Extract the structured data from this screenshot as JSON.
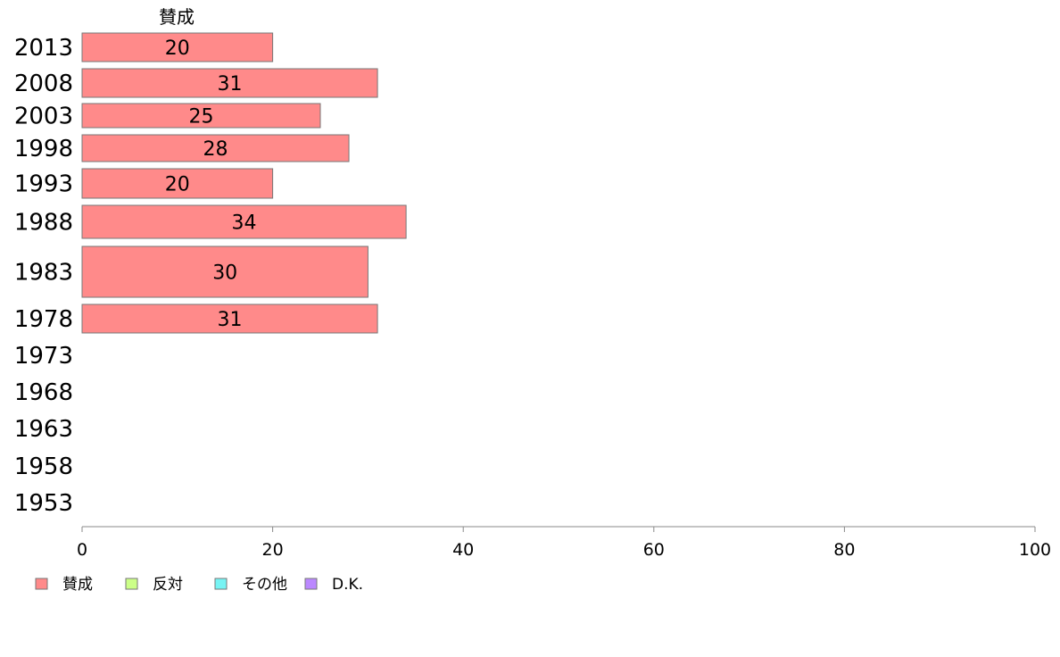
{
  "chart_data": {
    "type": "bar",
    "orientation": "horizontal",
    "stacked": true,
    "column_header": "賛成",
    "categories": [
      "2013",
      "2008",
      "2003",
      "1998",
      "1993",
      "1988",
      "1983",
      "1978",
      "1973",
      "1968",
      "1963",
      "1958",
      "1953"
    ],
    "series": [
      {
        "name": "賛成",
        "color": "#ff8a8a",
        "values": [
          20,
          31,
          25,
          28,
          20,
          34,
          30,
          31,
          null,
          null,
          null,
          null,
          null
        ],
        "labels": [
          "20",
          "31",
          "25",
          "28",
          "20",
          "34",
          "30",
          "31",
          "",
          "",
          "",
          "",
          ""
        ]
      },
      {
        "name": "反対",
        "color": "#ccff88",
        "values": [
          null,
          null,
          null,
          null,
          null,
          null,
          null,
          null,
          null,
          null,
          null,
          null,
          null
        ]
      },
      {
        "name": "その他",
        "color": "#77f4f4",
        "values": [
          null,
          null,
          null,
          null,
          null,
          null,
          null,
          null,
          null,
          null,
          null,
          null,
          null
        ]
      },
      {
        "name": "D.K.",
        "color": "#bb88ff",
        "values": [
          null,
          null,
          null,
          null,
          null,
          null,
          null,
          null,
          null,
          null,
          null,
          null,
          null
        ]
      }
    ],
    "xlim": [
      0,
      100
    ],
    "xticks": [
      "0",
      "20",
      "40",
      "60",
      "80",
      "100"
    ],
    "legend_position": "bottom-left",
    "grid": false
  }
}
